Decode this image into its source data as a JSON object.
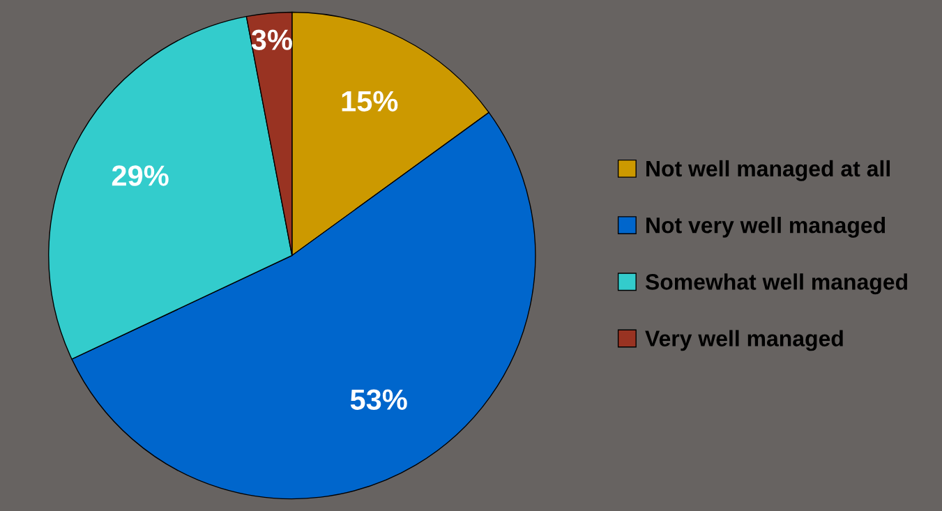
{
  "chart_data": {
    "type": "pie",
    "categories": [
      "Not well managed at all",
      "Not very well managed",
      "Somewhat well managed",
      "Very well managed"
    ],
    "values": [
      15,
      53,
      29,
      3
    ],
    "colors": [
      "#cc9900",
      "#0066cc",
      "#33cccc",
      "#993322"
    ],
    "value_labels": [
      "15%",
      "53%",
      "29%",
      "3%"
    ],
    "legend": "right"
  }
}
